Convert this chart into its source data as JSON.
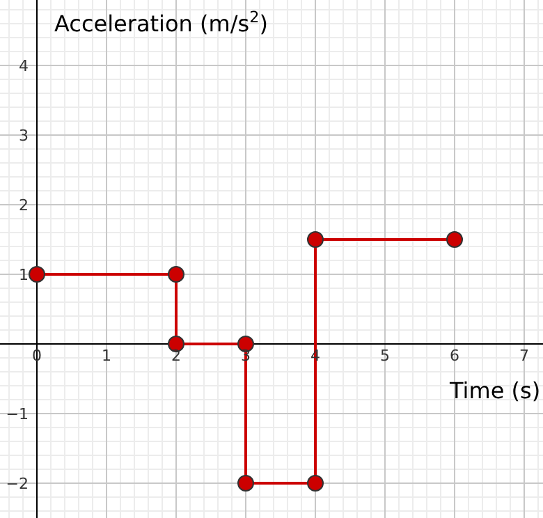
{
  "chart_data": {
    "type": "line",
    "xlabel": "Time (s)",
    "ylabel": "Acceleration (m/s$^{2}$)",
    "x": [
      0,
      2,
      2,
      3,
      3,
      4,
      4,
      6
    ],
    "series": [
      {
        "color": "#cc0000",
        "values": [
          1,
          1,
          0,
          0,
          -2,
          -2,
          1.5,
          1.5
        ]
      }
    ],
    "xlim": [
      -0.53,
      7.27
    ],
    "ylim": [
      -2.5,
      4.94
    ],
    "xticks": [
      0,
      1,
      2,
      3,
      4,
      5,
      6,
      7
    ],
    "yticks": [
      -2,
      -1,
      1,
      2,
      3,
      4
    ],
    "grid": true,
    "marker": "circle",
    "line_style": "solid"
  }
}
